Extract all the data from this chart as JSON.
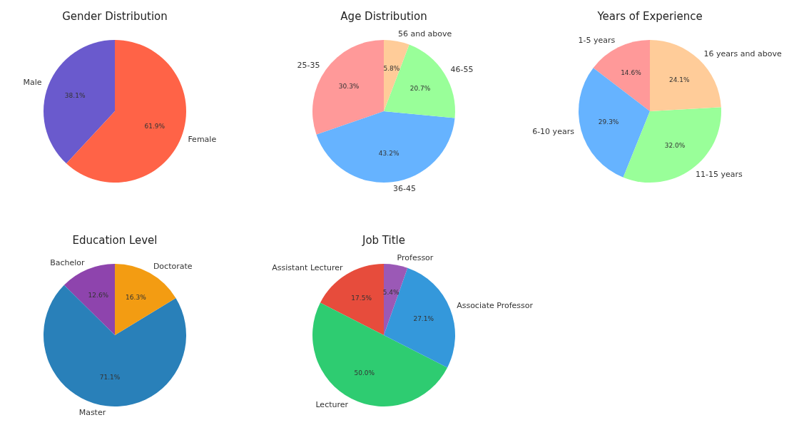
{
  "chart_data": [
    {
      "type": "pie",
      "title": "Gender Distribution",
      "categories": [
        "Male",
        "Female"
      ],
      "values": [
        38.1,
        61.9
      ],
      "value_labels": [
        "38.1%",
        "61.9%"
      ],
      "colors": [
        "#6a5acd",
        "#ff6347"
      ]
    },
    {
      "type": "pie",
      "title": "Age Distribution",
      "categories": [
        "25-35",
        "36-45",
        "46-55",
        "56 and above"
      ],
      "values": [
        30.3,
        43.2,
        20.7,
        5.8
      ],
      "value_labels": [
        "30.3%",
        "43.2%",
        "20.7%",
        "5.8%"
      ],
      "colors": [
        "#ff9999",
        "#66b3ff",
        "#99ff99",
        "#ffcc99"
      ]
    },
    {
      "type": "pie",
      "title": "Years of Experience",
      "categories": [
        "1-5 years",
        "6-10 years",
        "11-15 years",
        "16 years and above"
      ],
      "values": [
        14.6,
        29.3,
        32.0,
        24.1
      ],
      "value_labels": [
        "14.6%",
        "29.3%",
        "32.0%",
        "24.1%"
      ],
      "colors": [
        "#ff9999",
        "#66b3ff",
        "#99ff99",
        "#ffcc99"
      ]
    },
    {
      "type": "pie",
      "title": "Education Level",
      "categories": [
        "Bachelor",
        "Master",
        "Doctorate"
      ],
      "values": [
        12.6,
        71.1,
        16.3
      ],
      "value_labels": [
        "12.6%",
        "71.1%",
        "16.3%"
      ],
      "colors": [
        "#8e44ad",
        "#2980b9",
        "#f39c12"
      ]
    },
    {
      "type": "pie",
      "title": "Job Title",
      "categories": [
        "Assistant Lecturer",
        "Lecturer",
        "Associate Professor",
        "Professor"
      ],
      "values": [
        17.5,
        50.0,
        27.1,
        5.4
      ],
      "value_labels": [
        "17.5%",
        "50.0%",
        "27.1%",
        "5.4%"
      ],
      "colors": [
        "#e74c3c",
        "#2ecc71",
        "#3498db",
        "#9b59b6"
      ]
    }
  ]
}
